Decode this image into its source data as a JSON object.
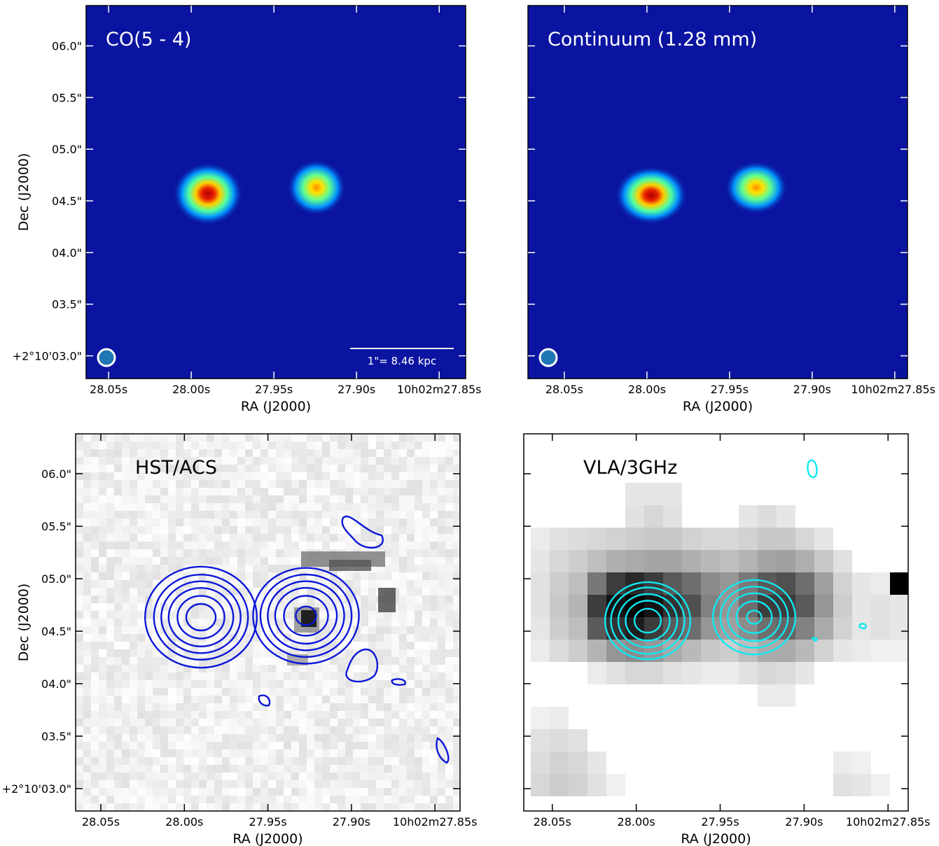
{
  "chart_data": [
    {
      "type": "image",
      "colormap": "jet",
      "title": "CO(5 - 4)",
      "annotation": "1\"= 8.46 kpc",
      "xlabel": "RA (J2000)",
      "ylabel": "Dec (J2000)",
      "xlim": [
        28.0636,
        27.834
      ],
      "ylim": [
        2.78,
        6.39
      ],
      "xticks": [
        {
          "value": 28.05,
          "label": "28.05s"
        },
        {
          "value": 28.0,
          "label": "28.00s"
        },
        {
          "value": 27.95,
          "label": "27.95s"
        },
        {
          "value": 27.9,
          "label": "27.90s"
        },
        {
          "value": 27.85,
          "label": "10h02m27.85s"
        }
      ],
      "yticks": [
        {
          "value": 3.0,
          "label": "+2°10'03.0\""
        },
        {
          "value": 3.5,
          "label": "03.5\""
        },
        {
          "value": 4.0,
          "label": "04.0\""
        },
        {
          "value": 4.5,
          "label": "04.5\""
        },
        {
          "value": 5.0,
          "label": "05.0\""
        },
        {
          "value": 5.5,
          "label": "05.5\""
        },
        {
          "value": 6.0,
          "label": "06.0\""
        }
      ]
    },
    {
      "type": "image",
      "colormap": "jet",
      "title": "Continuum (1.28 mm)",
      "xlabel": "RA (J2000)",
      "xlim": [
        28.072,
        27.8423
      ],
      "ylim": [
        2.78,
        6.39
      ],
      "xticks": [
        {
          "value": 28.05,
          "label": "28.05s"
        },
        {
          "value": 28.0,
          "label": "28.00s"
        },
        {
          "value": 27.95,
          "label": "27.95s"
        },
        {
          "value": 27.9,
          "label": "27.90s"
        },
        {
          "value": 27.85,
          "label": "10h02m27.85s"
        }
      ]
    },
    {
      "type": "image",
      "colormap": "gray",
      "contour_color": "#0b17d8",
      "title": "HST/ACS",
      "xlabel": "RA (J2000)",
      "ylabel": "Dec (J2000)",
      "xlim": [
        28.0651,
        27.835
      ],
      "ylim": [
        2.787,
        6.38
      ],
      "xticks": [
        {
          "value": 28.05,
          "label": "28.05s"
        },
        {
          "value": 28.0,
          "label": "28.00s"
        },
        {
          "value": 27.95,
          "label": "27.95s"
        },
        {
          "value": 27.9,
          "label": "27.90s"
        },
        {
          "value": 27.85,
          "label": "10h02m27.85s"
        }
      ],
      "yticks": [
        {
          "value": 3.0,
          "label": "+2°10'03.0\""
        },
        {
          "value": 3.5,
          "label": "03.5\""
        },
        {
          "value": 4.0,
          "label": "04.0\""
        },
        {
          "value": 4.5,
          "label": "04.5\""
        },
        {
          "value": 5.0,
          "label": "05.0\""
        },
        {
          "value": 5.5,
          "label": "05.5\""
        },
        {
          "value": 6.0,
          "label": "06.0\""
        }
      ]
    },
    {
      "type": "image",
      "colormap": "gray",
      "contour_color": "#10e8f0",
      "title": "VLA/3GHz",
      "xlabel": "RA (J2000)",
      "xlim": [
        28.067,
        27.838
      ],
      "ylim": [
        2.787,
        6.38
      ],
      "xticks": [
        {
          "value": 28.05,
          "label": "28.05s"
        },
        {
          "value": 28.0,
          "label": "28.00s"
        },
        {
          "value": 27.95,
          "label": "27.95s"
        },
        {
          "value": 27.9,
          "label": "27.90s"
        },
        {
          "value": 27.85,
          "label": "10h02m27.85s"
        }
      ]
    }
  ]
}
